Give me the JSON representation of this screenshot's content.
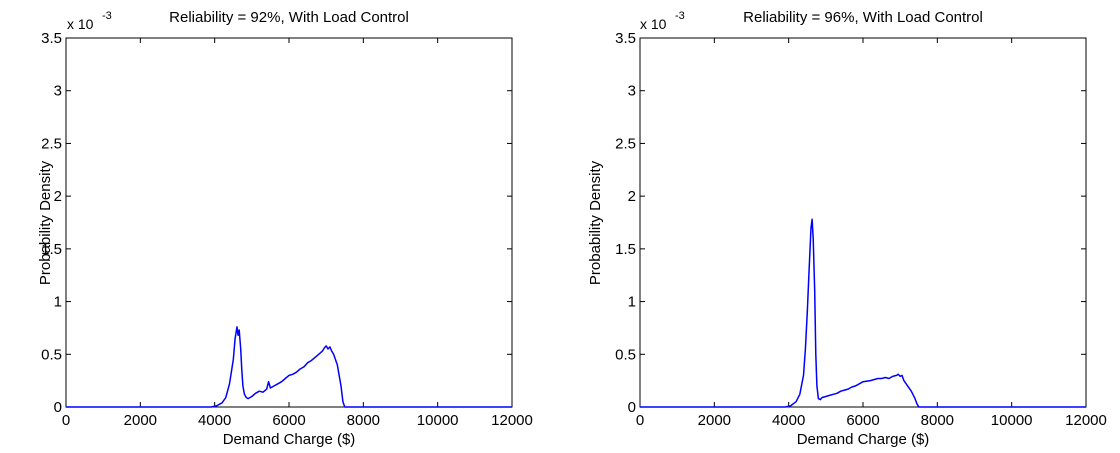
{
  "chart_data": [
    {
      "type": "line",
      "title": "Reliability = 92%, With Load Control",
      "xlabel": "Demand Charge ($)",
      "ylabel": "Probability Density",
      "y_multiplier": "x 10",
      "y_exponent": "-3",
      "xlim": [
        0,
        12000
      ],
      "ylim": [
        0,
        3.5
      ],
      "xticks": [
        "0",
        "2000",
        "4000",
        "6000",
        "8000",
        "10000",
        "12000"
      ],
      "yticks": [
        "0",
        "0.5",
        "1",
        "1.5",
        "2",
        "2.5",
        "3",
        "3.5"
      ],
      "grid": false,
      "color": "#0000ff",
      "series": [
        {
          "x": [
            0,
            3900,
            4050,
            4200,
            4300,
            4400,
            4500,
            4550,
            4600,
            4630,
            4660,
            4700,
            4730,
            4760,
            4800,
            4850,
            4900,
            5000,
            5100,
            5200,
            5300,
            5400,
            5450,
            5500,
            5600,
            5700,
            5800,
            5900,
            6000,
            6100,
            6200,
            6300,
            6400,
            6500,
            6600,
            6700,
            6800,
            6900,
            6950,
            7000,
            7050,
            7100,
            7150,
            7200,
            7300,
            7400,
            7450,
            7500,
            12000
          ],
          "y": [
            0,
            0,
            0.01,
            0.04,
            0.09,
            0.22,
            0.45,
            0.65,
            0.76,
            0.68,
            0.73,
            0.55,
            0.35,
            0.2,
            0.12,
            0.09,
            0.08,
            0.1,
            0.13,
            0.15,
            0.14,
            0.17,
            0.24,
            0.18,
            0.2,
            0.22,
            0.24,
            0.27,
            0.3,
            0.31,
            0.33,
            0.36,
            0.38,
            0.42,
            0.44,
            0.47,
            0.5,
            0.53,
            0.56,
            0.58,
            0.55,
            0.57,
            0.53,
            0.5,
            0.4,
            0.2,
            0.05,
            0,
            0
          ]
        }
      ]
    },
    {
      "type": "line",
      "title": "Reliability = 96%, With Load Control",
      "xlabel": "Demand Charge ($)",
      "ylabel": "Probability Density",
      "y_multiplier": "x 10",
      "y_exponent": "-3",
      "xlim": [
        0,
        12000
      ],
      "ylim": [
        0,
        3.5
      ],
      "xticks": [
        "0",
        "2000",
        "4000",
        "6000",
        "8000",
        "10000",
        "12000"
      ],
      "yticks": [
        "0",
        "0.5",
        "1",
        "1.5",
        "2",
        "2.5",
        "3",
        "3.5"
      ],
      "grid": false,
      "color": "#0000ff",
      "series": [
        {
          "x": [
            0,
            3900,
            4050,
            4200,
            4300,
            4400,
            4450,
            4500,
            4550,
            4600,
            4630,
            4660,
            4700,
            4730,
            4760,
            4800,
            4850,
            4900,
            5000,
            5100,
            5200,
            5300,
            5400,
            5500,
            5600,
            5700,
            5800,
            5900,
            6000,
            6200,
            6400,
            6500,
            6600,
            6700,
            6800,
            6900,
            6950,
            7000,
            7050,
            7100,
            7200,
            7300,
            7400,
            7450,
            7500,
            12000
          ],
          "y": [
            0,
            0,
            0.01,
            0.05,
            0.12,
            0.3,
            0.55,
            0.9,
            1.3,
            1.7,
            1.78,
            1.6,
            1.1,
            0.5,
            0.2,
            0.08,
            0.07,
            0.09,
            0.1,
            0.11,
            0.12,
            0.13,
            0.15,
            0.16,
            0.17,
            0.19,
            0.2,
            0.22,
            0.24,
            0.25,
            0.27,
            0.27,
            0.28,
            0.27,
            0.29,
            0.3,
            0.31,
            0.29,
            0.3,
            0.25,
            0.2,
            0.15,
            0.08,
            0.03,
            0,
            0
          ]
        }
      ]
    }
  ]
}
